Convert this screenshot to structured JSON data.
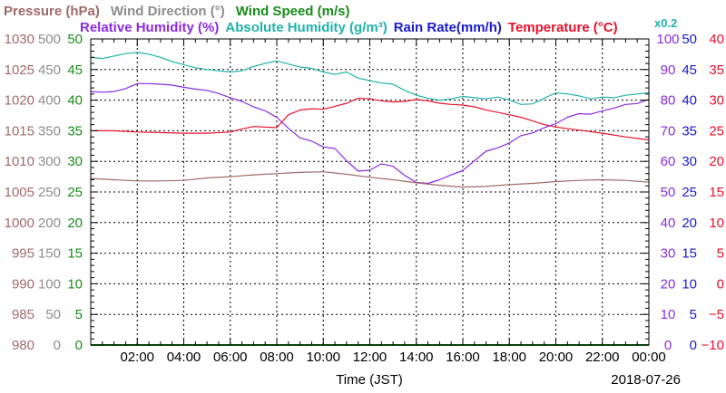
{
  "chart_data": {
    "type": "line",
    "legend": {
      "row1": [
        {
          "key": "pressure",
          "label": "Pressure (hPa)",
          "color": "#a06a6a"
        },
        {
          "key": "winddir",
          "label": "Wind Direction (°)",
          "color": "#8c8c8c"
        },
        {
          "key": "windspeed",
          "label": "Wind Speed (m/s)",
          "color": "#1a8a1a"
        }
      ],
      "row2": [
        {
          "key": "rh",
          "label": "Relative Humidity (%)",
          "color": "#8a2be2"
        },
        {
          "key": "ah",
          "label": "Absolute Humidity (g/m³)",
          "color": "#20b2aa"
        },
        {
          "key": "rain",
          "label": "Rain Rate(mm/h)",
          "color": "#1a1acc"
        },
        {
          "key": "temp",
          "label": "Temperature (°C)",
          "color": "#e8102a"
        }
      ],
      "ah_scale_note": "x0.2"
    },
    "x_axis": {
      "label": "Time (JST)",
      "range_hours": [
        0,
        24
      ],
      "tick_labels": [
        "02:00",
        "04:00",
        "06:00",
        "08:00",
        "10:00",
        "12:00",
        "14:00",
        "16:00",
        "18:00",
        "20:00",
        "22:00",
        "00:00"
      ],
      "tick_hours": [
        2,
        4,
        6,
        8,
        10,
        12,
        14,
        16,
        18,
        20,
        22,
        24
      ],
      "date": "2018-07-26"
    },
    "y_axes": {
      "pressure": {
        "color": "#a06a6a",
        "ticks": [
          "980",
          "985",
          "990",
          "995",
          "1000",
          "1005",
          "1010",
          "1015",
          "1020",
          "1025",
          "1030"
        ],
        "range": [
          980,
          1030
        ]
      },
      "winddir": {
        "color": "#8c8c8c",
        "ticks": [
          "0",
          "50",
          "100",
          "150",
          "200",
          "250",
          "300",
          "350",
          "400",
          "450",
          "500"
        ],
        "range": [
          0,
          500
        ]
      },
      "windspeed": {
        "color": "#1a8a1a",
        "ticks": [
          "0",
          "5",
          "10",
          "15",
          "20",
          "25",
          "30",
          "35",
          "40",
          "45",
          "50"
        ],
        "range": [
          0,
          50
        ]
      },
      "rh": {
        "color": "#8a2be2",
        "ticks": [
          "0",
          "10",
          "20",
          "30",
          "40",
          "50",
          "60",
          "70",
          "80",
          "90",
          "100"
        ],
        "range": [
          0,
          100
        ]
      },
      "rain": {
        "color": "#1a1acc",
        "ticks": [
          "0",
          "5",
          "10",
          "15",
          "20",
          "25",
          "30",
          "35",
          "40",
          "45",
          "50"
        ],
        "range": [
          0,
          50
        ]
      },
      "temp": {
        "color": "#e8102a",
        "ticks": [
          "−10",
          "−5",
          "0",
          "5",
          "10",
          "15",
          "20",
          "25",
          "30",
          "35",
          "40"
        ],
        "range": [
          -10,
          40
        ]
      }
    },
    "grid": true,
    "series": [
      {
        "key": "temp",
        "name": "Temperature (°C)",
        "color": "#e8102a",
        "axis": "temp",
        "x": [
          0,
          1,
          2,
          3,
          4,
          5,
          6,
          6.5,
          7,
          7.5,
          8,
          8.5,
          9,
          9.5,
          10,
          10.5,
          11,
          11.5,
          12,
          12.5,
          13,
          13.5,
          14,
          14.5,
          15,
          15.5,
          16,
          16.5,
          17,
          17.5,
          18,
          18.5,
          19,
          19.5,
          20,
          21,
          22,
          23,
          24
        ],
        "y": [
          25.0,
          25.0,
          24.8,
          24.7,
          24.6,
          24.6,
          24.8,
          25.3,
          25.7,
          25.6,
          25.5,
          27.6,
          28.4,
          28.6,
          28.5,
          29.0,
          29.5,
          30.3,
          30.2,
          29.9,
          29.7,
          29.8,
          30.1,
          29.9,
          29.5,
          29.3,
          29.2,
          28.9,
          28.4,
          28.0,
          27.6,
          27.2,
          26.6,
          26.0,
          25.6,
          25.1,
          24.6,
          24.0,
          23.5
        ]
      },
      {
        "key": "ah",
        "name": "Absolute Humidity (g/m³)",
        "color": "#20b2aa",
        "axis": "windspeed",
        "x": [
          0,
          0.5,
          1,
          1.5,
          2,
          2.5,
          3,
          3.5,
          4,
          4.5,
          5,
          5.5,
          6,
          6.5,
          7,
          7.5,
          8,
          8.5,
          9,
          9.5,
          10,
          10.5,
          11,
          11.5,
          12,
          12.5,
          13,
          13.5,
          14,
          14.5,
          15,
          15.5,
          16,
          16.5,
          17,
          17.5,
          18,
          18.5,
          19,
          19.5,
          20,
          20.5,
          21,
          21.5,
          22,
          22.5,
          23,
          23.5,
          24
        ],
        "y": [
          47.0,
          46.8,
          47.2,
          47.6,
          47.8,
          47.5,
          47.0,
          46.3,
          45.8,
          45.3,
          45.0,
          44.8,
          44.6,
          44.8,
          45.5,
          46.0,
          46.4,
          45.9,
          45.4,
          45.2,
          44.6,
          44.2,
          44.6,
          43.6,
          43.2,
          42.8,
          42.6,
          41.6,
          40.8,
          40.3,
          40.0,
          40.2,
          40.6,
          40.4,
          40.2,
          40.5,
          40.0,
          39.3,
          39.4,
          40.3,
          41.2,
          41.0,
          40.7,
          40.2,
          40.5,
          40.4,
          40.8,
          41.0,
          41.2
        ]
      },
      {
        "key": "rh",
        "name": "Relative Humidity (%)",
        "color": "#8a2be2",
        "axis": "rh",
        "x": [
          0,
          0.5,
          1,
          1.5,
          2,
          2.5,
          3,
          3.5,
          4,
          4.5,
          5,
          5.5,
          6,
          6.5,
          7,
          7.5,
          8,
          8.5,
          9,
          9.5,
          10,
          10.5,
          11,
          11.5,
          12,
          12.5,
          13,
          13.5,
          14,
          14.5,
          15,
          15.5,
          16,
          16.5,
          17,
          17.5,
          18,
          18.5,
          19,
          19.5,
          20,
          20.5,
          21,
          21.5,
          22,
          22.5,
          23,
          23.5,
          24
        ],
        "y": [
          82.8,
          82.6,
          82.8,
          83.8,
          85.4,
          85.4,
          85.2,
          84.9,
          84.2,
          83.6,
          83.2,
          82.2,
          80.8,
          79.6,
          77.8,
          76.5,
          74.4,
          70.8,
          67.7,
          66.6,
          64.7,
          64.2,
          60.2,
          56.8,
          57.1,
          59.2,
          58.4,
          55.4,
          53.1,
          52.8,
          54.0,
          55.6,
          57.0,
          60.2,
          63.3,
          64.4,
          66.0,
          68.4,
          69.3,
          71.0,
          72.3,
          74.4,
          75.6,
          75.4,
          76.5,
          77.4,
          78.6,
          78.9,
          80.3
        ]
      },
      {
        "key": "pressure",
        "name": "Pressure (hPa)",
        "color": "#a06a6a",
        "axis": "pressure",
        "x": [
          0,
          1,
          2,
          3,
          4,
          5,
          6,
          7,
          8,
          9,
          10,
          11,
          12,
          13,
          14,
          15,
          16,
          17,
          18,
          19,
          20,
          21,
          22,
          23,
          24
        ],
        "y": [
          1007.2,
          1007.0,
          1006.8,
          1006.8,
          1006.9,
          1007.3,
          1007.5,
          1007.8,
          1008.0,
          1008.2,
          1008.3,
          1007.9,
          1007.4,
          1007.0,
          1006.5,
          1006.1,
          1005.8,
          1005.9,
          1006.2,
          1006.4,
          1006.7,
          1006.9,
          1007.0,
          1006.9,
          1006.6
        ]
      },
      {
        "key": "windspeed",
        "name": "Wind Speed (m/s)",
        "color": "#1a8a1a",
        "axis": "windspeed",
        "x": [
          0,
          24
        ],
        "y": [
          0,
          0
        ]
      }
    ]
  }
}
